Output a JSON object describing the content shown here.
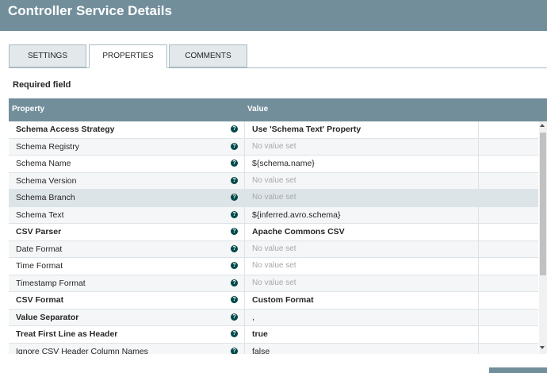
{
  "dialog": {
    "title": "Controller Service Details"
  },
  "tabs": [
    {
      "label": "SETTINGS"
    },
    {
      "label": "PROPERTIES"
    },
    {
      "label": "COMMENTS"
    }
  ],
  "required_label": "Required field",
  "table": {
    "headers": {
      "property": "Property",
      "value": "Value"
    },
    "help_glyph": "?",
    "rows": [
      {
        "name": "Schema Access Strategy",
        "value": "Use 'Schema Text' Property"
      },
      {
        "name": "Schema Registry",
        "value": "No value set"
      },
      {
        "name": "Schema Name",
        "value": "${schema.name}"
      },
      {
        "name": "Schema Version",
        "value": "No value set"
      },
      {
        "name": "Schema Branch",
        "value": "No value set"
      },
      {
        "name": "Schema Text",
        "value": "${inferred.avro.schema}"
      },
      {
        "name": "CSV Parser",
        "value": "Apache Commons CSV"
      },
      {
        "name": "Date Format",
        "value": "No value set"
      },
      {
        "name": "Time Format",
        "value": "No value set"
      },
      {
        "name": "Timestamp Format",
        "value": "No value set"
      },
      {
        "name": "CSV Format",
        "value": "Custom Format"
      },
      {
        "name": "Value Separator",
        "value": ","
      },
      {
        "name": "Treat First Line as Header",
        "value": "true"
      },
      {
        "name": "Ignore CSV Header Column Names",
        "value": "false"
      }
    ]
  },
  "colors": {
    "header_bg": "#728e9b",
    "help_icon": "#004849",
    "unset_text": "#a8a8a8"
  }
}
